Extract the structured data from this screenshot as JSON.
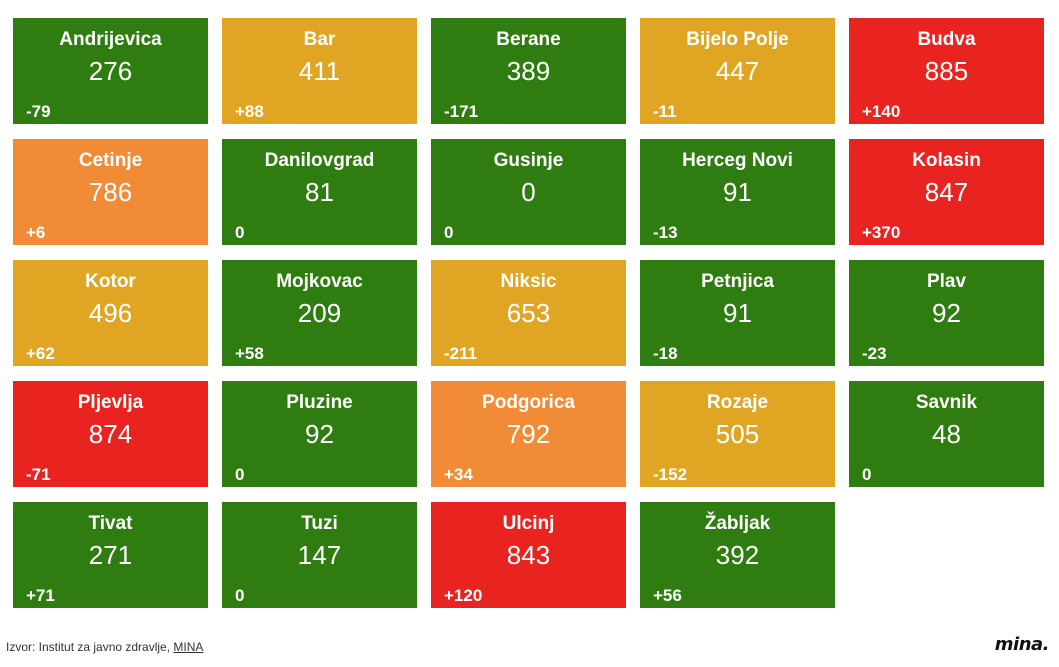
{
  "chart_data": {
    "type": "table",
    "title": "",
    "colors": {
      "green": "#2f7d10",
      "yellow": "#e0a623",
      "orange": "#f28b35",
      "red": "#e9231f"
    },
    "tiles": [
      {
        "name": "Andrijevica",
        "value": "276",
        "change": "-79",
        "color": "green"
      },
      {
        "name": "Bar",
        "value": "411",
        "change": "+88",
        "color": "yellow"
      },
      {
        "name": "Berane",
        "value": "389",
        "change": "-171",
        "color": "green"
      },
      {
        "name": "Bijelo Polje",
        "value": "447",
        "change": "-11",
        "color": "yellow"
      },
      {
        "name": "Budva",
        "value": "885",
        "change": "+140",
        "color": "red"
      },
      {
        "name": "Cetinje",
        "value": "786",
        "change": "+6",
        "color": "orange"
      },
      {
        "name": "Danilovgrad",
        "value": "81",
        "change": "0",
        "color": "green"
      },
      {
        "name": "Gusinje",
        "value": "0",
        "change": "0",
        "color": "green"
      },
      {
        "name": "Herceg Novi",
        "value": "91",
        "change": "-13",
        "color": "green"
      },
      {
        "name": "Kolasin",
        "value": "847",
        "change": "+370",
        "color": "red"
      },
      {
        "name": "Kotor",
        "value": "496",
        "change": "+62",
        "color": "yellow"
      },
      {
        "name": "Mojkovac",
        "value": "209",
        "change": "+58",
        "color": "green"
      },
      {
        "name": "Niksic",
        "value": "653",
        "change": "-211",
        "color": "yellow"
      },
      {
        "name": "Petnjica",
        "value": "91",
        "change": "-18",
        "color": "green"
      },
      {
        "name": "Plav",
        "value": "92",
        "change": "-23",
        "color": "green"
      },
      {
        "name": "Pljevlja",
        "value": "874",
        "change": "-71",
        "color": "red"
      },
      {
        "name": "Pluzine",
        "value": "92",
        "change": "0",
        "color": "green"
      },
      {
        "name": "Podgorica",
        "value": "792",
        "change": "+34",
        "color": "orange"
      },
      {
        "name": "Rozaje",
        "value": "505",
        "change": "-152",
        "color": "yellow"
      },
      {
        "name": "Savnik",
        "value": "48",
        "change": "0",
        "color": "green"
      },
      {
        "name": "Tivat",
        "value": "271",
        "change": "+71",
        "color": "green"
      },
      {
        "name": "Tuzi",
        "value": "147",
        "change": "0",
        "color": "green"
      },
      {
        "name": "Ulcinj",
        "value": "843",
        "change": "+120",
        "color": "red"
      },
      {
        "name": "Žabljak",
        "value": "392",
        "change": "+56",
        "color": "green"
      }
    ]
  },
  "footer": {
    "source_text": "Izvor: Institut za javno zdravlje, ",
    "source_link": "MINA"
  },
  "logo": {
    "text": "mina."
  }
}
